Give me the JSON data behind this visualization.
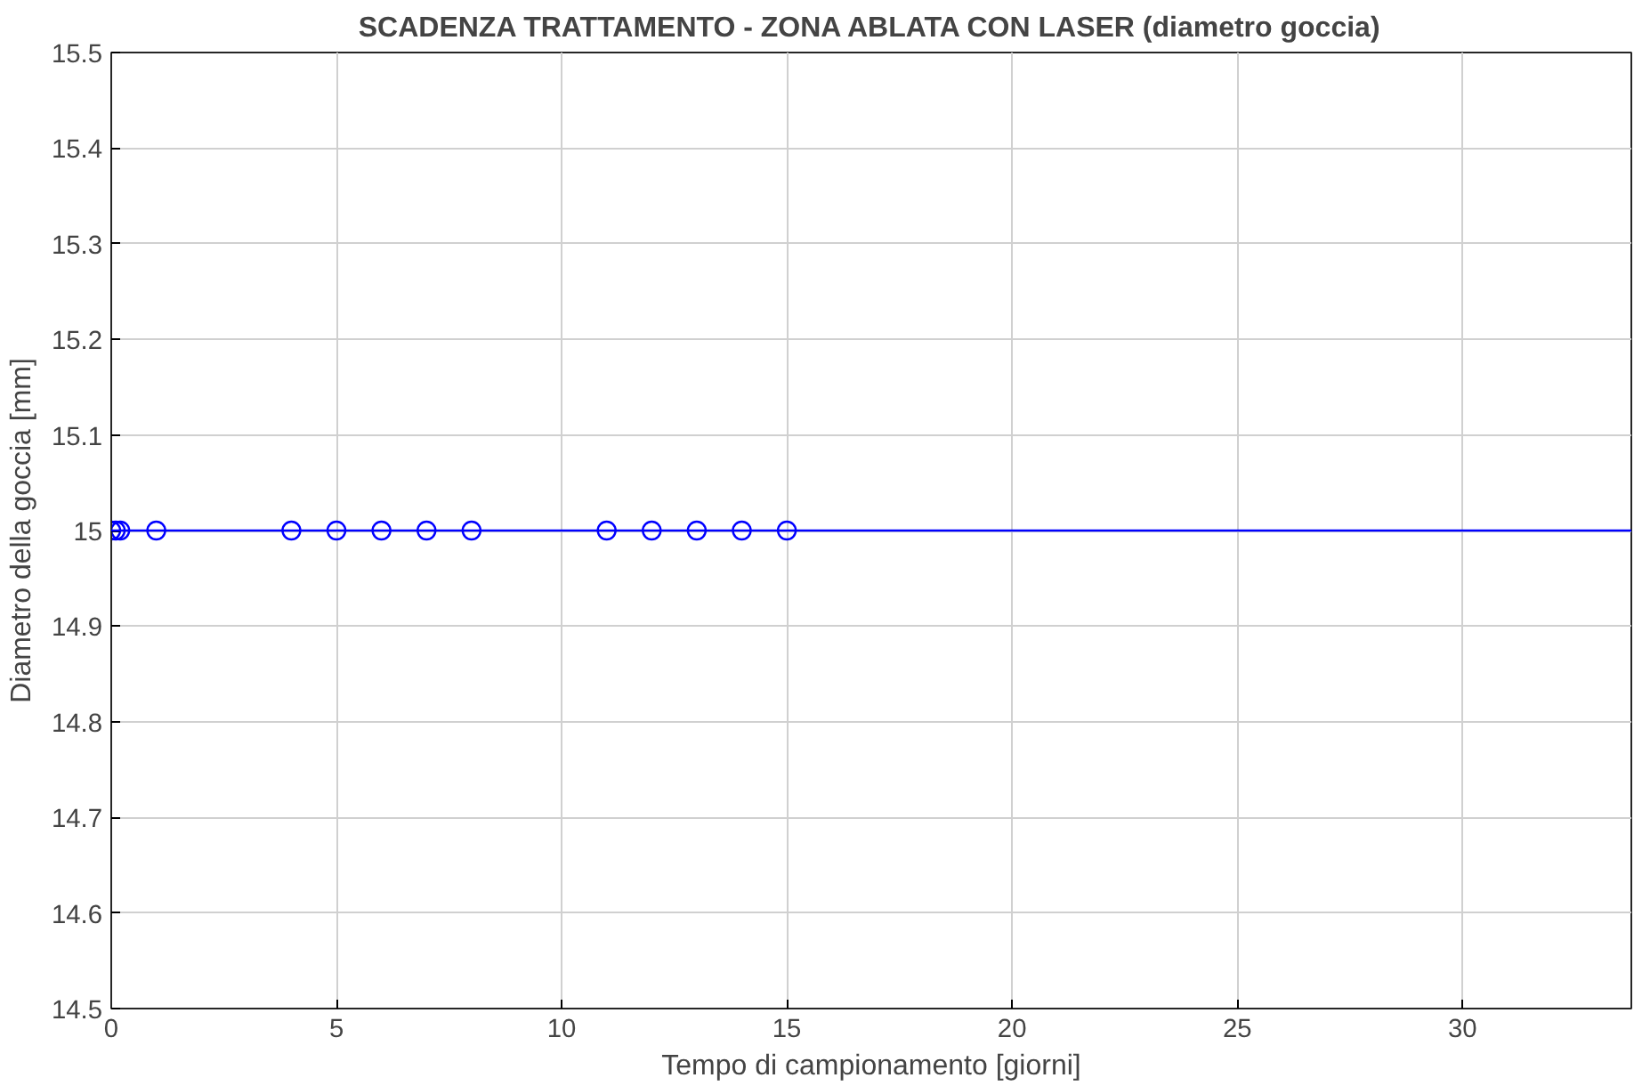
{
  "chart_data": {
    "type": "scatter",
    "title": "SCADENZA TRATTAMENTO - ZONA ABLATA CON LASER (diametro goccia)",
    "xlabel": "Tempo di campionamento [giorni]",
    "ylabel": "Diametro della goccia [mm]",
    "x": [
      0,
      0.1,
      0.2,
      1,
      4,
      5,
      6,
      7,
      8,
      11,
      12,
      13,
      14,
      15
    ],
    "series": [
      {
        "color": "#0000ff",
        "values": [
          15,
          15,
          15,
          15,
          15,
          15,
          15,
          15,
          15,
          15,
          15,
          15,
          15,
          15
        ]
      }
    ],
    "marker": "circle",
    "xlim": [
      0,
      33.75
    ],
    "ylim": [
      14.5,
      15.5
    ],
    "xticks": [
      0,
      5,
      10,
      15,
      20,
      25,
      30
    ],
    "yticks": [
      14.5,
      14.6,
      14.7,
      14.8,
      14.9,
      15,
      15.1,
      15.2,
      15.3,
      15.4,
      15.5
    ],
    "ref_lines": [
      {
        "axis": "y",
        "value": 15,
        "color": "#0000ff",
        "line_style": "solid"
      }
    ],
    "grid": true
  }
}
